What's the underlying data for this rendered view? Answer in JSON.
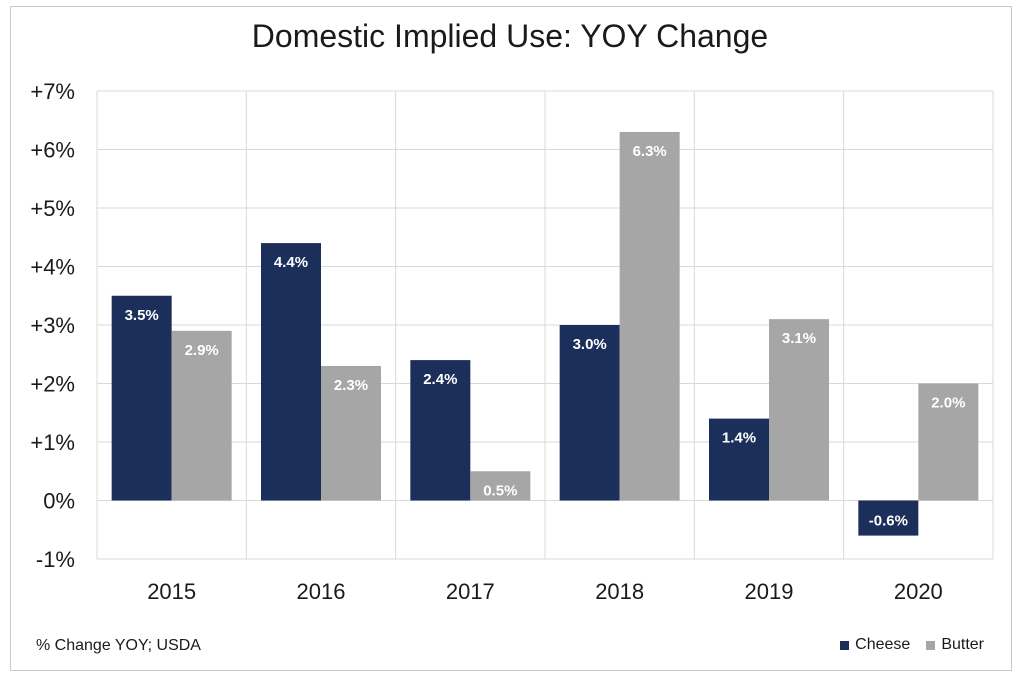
{
  "colors": {
    "cheese": "#1c2f5a",
    "butter": "#a6a6a6",
    "grid": "#d9d9d9"
  },
  "footnote": "% Change YOY; USDA",
  "chart_data": {
    "type": "bar",
    "title": "Domestic Implied Use: YOY Change",
    "xlabel": "",
    "ylabel": "",
    "categories": [
      "2015",
      "2016",
      "2017",
      "2018",
      "2019",
      "2020"
    ],
    "series": [
      {
        "name": "Cheese",
        "color": "#1c2f5a",
        "values": [
          3.5,
          4.4,
          2.4,
          3.0,
          1.4,
          -0.6
        ],
        "labels": [
          "3.5%",
          "4.4%",
          "2.4%",
          "3.0%",
          "1.4%",
          "-0.6%"
        ]
      },
      {
        "name": "Butter",
        "color": "#a6a6a6",
        "values": [
          2.9,
          2.3,
          0.5,
          6.3,
          3.1,
          2.0
        ],
        "labels": [
          "2.9%",
          "2.3%",
          "0.5%",
          "6.3%",
          "3.1%",
          "2.0%"
        ]
      }
    ],
    "ylim": [
      -1,
      7
    ],
    "yticks": [
      -1,
      0,
      1,
      2,
      3,
      4,
      5,
      6,
      7
    ],
    "ytick_labels": [
      "-1%",
      "0%",
      "+1%",
      "+2%",
      "+3%",
      "+4%",
      "+5%",
      "+6%",
      "+7%"
    ],
    "grid": true,
    "legend_position": "bottom-right"
  }
}
